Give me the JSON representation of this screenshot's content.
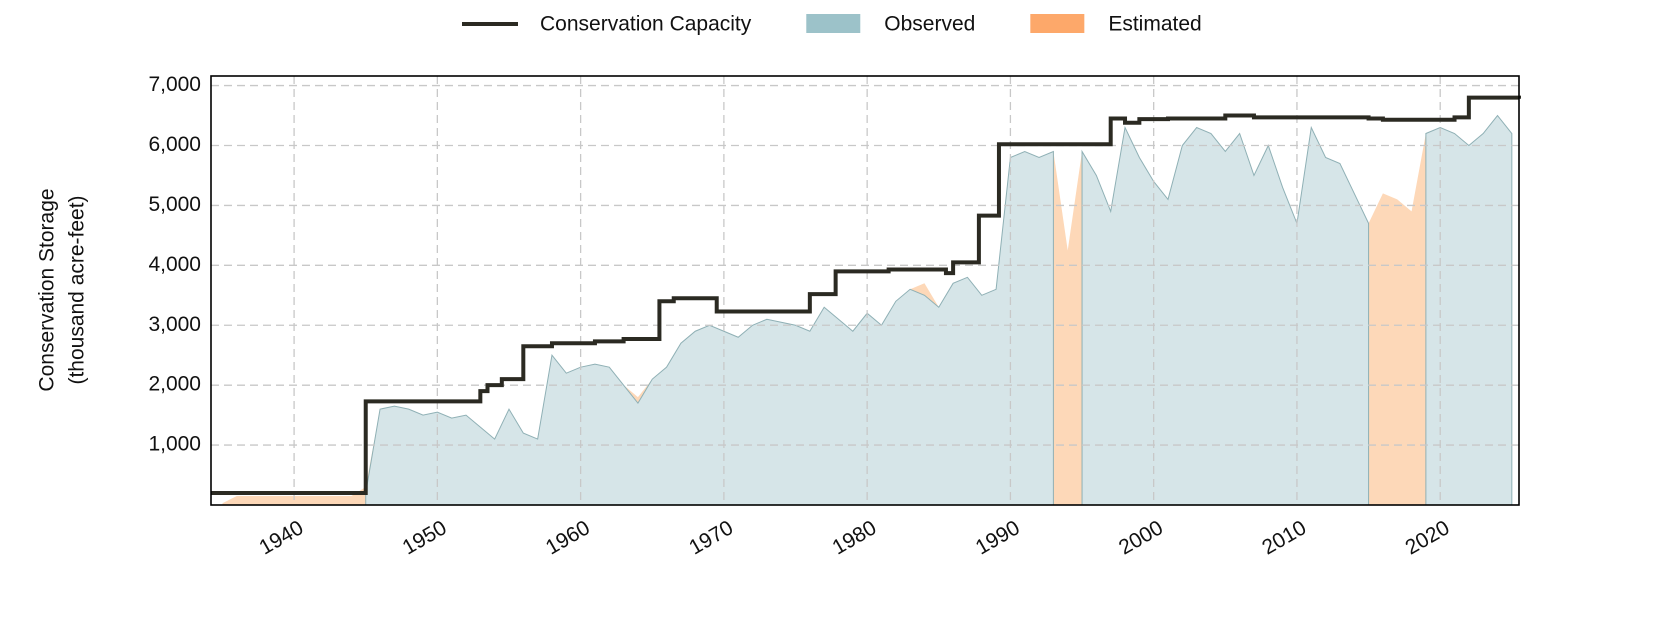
{
  "chart_data": {
    "type": "area",
    "ylabel": [
      "Conservation Storage",
      "(thousand acre-feet)"
    ],
    "xlim": [
      1934.2,
      2025.5
    ],
    "xticks": [
      1940,
      1950,
      1960,
      1970,
      1980,
      1990,
      2000,
      2010,
      2020
    ],
    "ylim": [
      0,
      7160
    ],
    "yticks": [
      {
        "value": 1000,
        "label": "1,000"
      },
      {
        "value": 2000,
        "label": "2,000"
      },
      {
        "value": 3000,
        "label": "3,000"
      },
      {
        "value": 4000,
        "label": "4,000"
      },
      {
        "value": 5000,
        "label": "5,000"
      },
      {
        "value": 6000,
        "label": "6,000"
      },
      {
        "value": 7000,
        "label": "7,000"
      }
    ],
    "grid": true,
    "legend": "top",
    "x": [
      1935,
      1936,
      1937,
      1938,
      1939,
      1940,
      1941,
      1942,
      1943,
      1944,
      1945,
      1946,
      1947,
      1948,
      1949,
      1950,
      1951,
      1952,
      1953,
      1954,
      1955,
      1956,
      1957,
      1958,
      1959,
      1960,
      1961,
      1962,
      1963,
      1964,
      1965,
      1966,
      1967,
      1968,
      1969,
      1970,
      1971,
      1972,
      1973,
      1974,
      1975,
      1976,
      1977,
      1978,
      1979,
      1980,
      1981,
      1982,
      1983,
      1984,
      1985,
      1986,
      1987,
      1988,
      1989,
      1990,
      1991,
      1992,
      1993,
      1994,
      1995,
      1996,
      1997,
      1998,
      1999,
      2000,
      2001,
      2002,
      2003,
      2004,
      2005,
      2006,
      2007,
      2008,
      2009,
      2010,
      2011,
      2012,
      2013,
      2014,
      2015,
      2016,
      2017,
      2018,
      2019,
      2020,
      2021,
      2022,
      2023,
      2024,
      2025
    ],
    "series": [
      {
        "name": "Conservation Capacity",
        "color": "#2b2a22",
        "kind": "step",
        "x": [
          1934.2,
          1945,
          1953,
          1953.5,
          1954.5,
          1956,
          1958,
          1961,
          1963,
          1965.5,
          1966.5,
          1969.5,
          1976,
          1977.8,
          1981.5,
          1985.5,
          1986,
          1987.8,
          1989.2,
          1997,
          1998,
          1999,
          2001,
          2005,
          2007,
          2015,
          2016,
          2021,
          2022,
          2025.5
        ],
        "values": [
          200,
          1730,
          1900,
          2000,
          2100,
          2650,
          2700,
          2730,
          2770,
          3400,
          3450,
          3230,
          3520,
          3900,
          3930,
          3870,
          4050,
          4830,
          6020,
          6450,
          6380,
          6440,
          6450,
          6500,
          6470,
          6450,
          6430,
          6470,
          6800,
          6780
        ]
      },
      {
        "name": "Observed",
        "color": "#9cc2c9",
        "kind": "area",
        "values": [
          null,
          null,
          null,
          null,
          null,
          null,
          null,
          null,
          null,
          null,
          200,
          1600,
          1650,
          1600,
          1500,
          1550,
          1450,
          1500,
          1300,
          1100,
          1600,
          1200,
          1100,
          2500,
          2200,
          2300,
          2350,
          2300,
          2000,
          1700,
          2100,
          2300,
          2700,
          2900,
          3000,
          2900,
          2800,
          3000,
          3100,
          3050,
          3000,
          2900,
          3300,
          3100,
          2900,
          3200,
          3000,
          3400,
          3600,
          3500,
          3300,
          3700,
          3800,
          3500,
          3600,
          5800,
          5900,
          5800,
          5900,
          null,
          5900,
          5500,
          4900,
          6300,
          5800,
          5400,
          5100,
          6000,
          6300,
          6200,
          5900,
          6200,
          5500,
          6000,
          5300,
          4700,
          6300,
          5800,
          5700,
          5200,
          4700,
          null,
          null,
          null,
          6200,
          6300,
          6200,
          6000,
          6200,
          6500,
          6200
        ]
      },
      {
        "name": "Estimated",
        "color": "#fda86a",
        "kind": "area",
        "values": [
          30,
          150,
          150,
          150,
          150,
          150,
          150,
          150,
          150,
          150,
          300,
          1600,
          1650,
          1600,
          1500,
          1550,
          1450,
          1500,
          1300,
          1100,
          1600,
          1200,
          1100,
          2500,
          2200,
          2300,
          2350,
          2300,
          2000,
          1800,
          2100,
          2300,
          2700,
          2900,
          3000,
          2900,
          2800,
          3000,
          3100,
          3050,
          3000,
          2900,
          3300,
          3100,
          2900,
          3200,
          3000,
          3400,
          3600,
          3700,
          3300,
          3700,
          3800,
          3500,
          3600,
          5800,
          5900,
          5800,
          5900,
          4250,
          5900,
          5500,
          4900,
          6300,
          5800,
          5400,
          5100,
          6000,
          6300,
          6200,
          5900,
          6200,
          5500,
          6000,
          5300,
          4700,
          6300,
          5800,
          5700,
          5200,
          4700,
          5200,
          5100,
          4900,
          6200,
          6300,
          6200,
          6000,
          6200,
          6500,
          6200
        ]
      }
    ]
  }
}
